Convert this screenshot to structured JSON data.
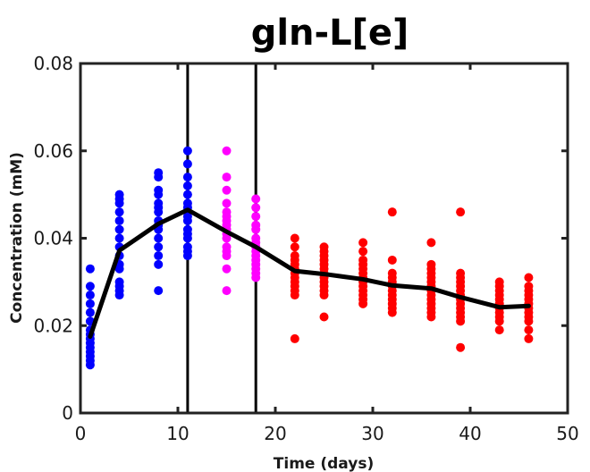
{
  "chart_data": {
    "type": "scatter",
    "title": "gln-L[e]",
    "xlabel": "Time (days)",
    "ylabel": "Concentration (mM)",
    "xlim": [
      0,
      50
    ],
    "ylim": [
      0,
      0.08
    ],
    "xticks": [
      "0",
      "10",
      "20",
      "30",
      "40",
      "50"
    ],
    "yticks": [
      "0",
      "0.02",
      "0.04",
      "0.06",
      "0.08"
    ],
    "grid": false,
    "vertical_lines": [
      11,
      18
    ],
    "colors": {
      "phase1": "#0000ff",
      "phase2": "#ff00ff",
      "phase3": "#ff0000",
      "mean_line": "#000000",
      "vlines": "#000000"
    },
    "series": [
      {
        "key": "phase1",
        "points": [
          [
            1,
            0.011
          ],
          [
            1,
            0.012
          ],
          [
            1,
            0.013
          ],
          [
            1,
            0.014
          ],
          [
            1,
            0.015
          ],
          [
            1,
            0.016
          ],
          [
            1,
            0.017
          ],
          [
            1,
            0.018
          ],
          [
            1,
            0.019
          ],
          [
            1,
            0.021
          ],
          [
            1,
            0.023
          ],
          [
            1,
            0.025
          ],
          [
            1,
            0.027
          ],
          [
            1,
            0.029
          ],
          [
            1,
            0.033
          ],
          [
            4,
            0.027
          ],
          [
            4,
            0.028
          ],
          [
            4,
            0.029
          ],
          [
            4,
            0.03
          ],
          [
            4,
            0.033
          ],
          [
            4,
            0.034
          ],
          [
            4,
            0.036
          ],
          [
            4,
            0.038
          ],
          [
            4,
            0.04
          ],
          [
            4,
            0.042
          ],
          [
            4,
            0.044
          ],
          [
            4,
            0.046
          ],
          [
            4,
            0.048
          ],
          [
            4,
            0.049
          ],
          [
            4,
            0.05
          ],
          [
            8,
            0.028
          ],
          [
            8,
            0.034
          ],
          [
            8,
            0.036
          ],
          [
            8,
            0.038
          ],
          [
            8,
            0.04
          ],
          [
            8,
            0.042
          ],
          [
            8,
            0.043
          ],
          [
            8,
            0.044
          ],
          [
            8,
            0.046
          ],
          [
            8,
            0.047
          ],
          [
            8,
            0.048
          ],
          [
            8,
            0.05
          ],
          [
            8,
            0.051
          ],
          [
            8,
            0.054
          ],
          [
            8,
            0.055
          ],
          [
            11,
            0.036
          ],
          [
            11,
            0.037
          ],
          [
            11,
            0.038
          ],
          [
            11,
            0.04
          ],
          [
            11,
            0.041
          ],
          [
            11,
            0.042
          ],
          [
            11,
            0.044
          ],
          [
            11,
            0.045
          ],
          [
            11,
            0.047
          ],
          [
            11,
            0.048
          ],
          [
            11,
            0.05
          ],
          [
            11,
            0.052
          ],
          [
            11,
            0.054
          ],
          [
            11,
            0.057
          ],
          [
            11,
            0.06
          ]
        ]
      },
      {
        "key": "phase2",
        "points": [
          [
            15,
            0.028
          ],
          [
            15,
            0.033
          ],
          [
            15,
            0.036
          ],
          [
            15,
            0.037
          ],
          [
            15,
            0.038
          ],
          [
            15,
            0.04
          ],
          [
            15,
            0.041
          ],
          [
            15,
            0.042
          ],
          [
            15,
            0.043
          ],
          [
            15,
            0.044
          ],
          [
            15,
            0.045
          ],
          [
            15,
            0.046
          ],
          [
            15,
            0.048
          ],
          [
            15,
            0.051
          ],
          [
            15,
            0.054
          ],
          [
            15,
            0.06
          ],
          [
            18,
            0.031
          ],
          [
            18,
            0.032
          ],
          [
            18,
            0.033
          ],
          [
            18,
            0.034
          ],
          [
            18,
            0.035
          ],
          [
            18,
            0.036
          ],
          [
            18,
            0.037
          ],
          [
            18,
            0.038
          ],
          [
            18,
            0.039
          ],
          [
            18,
            0.04
          ],
          [
            18,
            0.042
          ],
          [
            18,
            0.043
          ],
          [
            18,
            0.045
          ],
          [
            18,
            0.047
          ],
          [
            18,
            0.049
          ]
        ]
      },
      {
        "key": "phase3",
        "points": [
          [
            22,
            0.017
          ],
          [
            22,
            0.027
          ],
          [
            22,
            0.028
          ],
          [
            22,
            0.029
          ],
          [
            22,
            0.03
          ],
          [
            22,
            0.031
          ],
          [
            22,
            0.032
          ],
          [
            22,
            0.033
          ],
          [
            22,
            0.034
          ],
          [
            22,
            0.035
          ],
          [
            22,
            0.036
          ],
          [
            22,
            0.038
          ],
          [
            22,
            0.04
          ],
          [
            25,
            0.022
          ],
          [
            25,
            0.027
          ],
          [
            25,
            0.028
          ],
          [
            25,
            0.029
          ],
          [
            25,
            0.03
          ],
          [
            25,
            0.031
          ],
          [
            25,
            0.032
          ],
          [
            25,
            0.033
          ],
          [
            25,
            0.034
          ],
          [
            25,
            0.035
          ],
          [
            25,
            0.036
          ],
          [
            25,
            0.037
          ],
          [
            25,
            0.038
          ],
          [
            29,
            0.025
          ],
          [
            29,
            0.026
          ],
          [
            29,
            0.027
          ],
          [
            29,
            0.028
          ],
          [
            29,
            0.029
          ],
          [
            29,
            0.03
          ],
          [
            29,
            0.031
          ],
          [
            29,
            0.032
          ],
          [
            29,
            0.033
          ],
          [
            29,
            0.034
          ],
          [
            29,
            0.035
          ],
          [
            29,
            0.037
          ],
          [
            29,
            0.039
          ],
          [
            32,
            0.023
          ],
          [
            32,
            0.024
          ],
          [
            32,
            0.025
          ],
          [
            32,
            0.026
          ],
          [
            32,
            0.027
          ],
          [
            32,
            0.028
          ],
          [
            32,
            0.029
          ],
          [
            32,
            0.03
          ],
          [
            32,
            0.031
          ],
          [
            32,
            0.032
          ],
          [
            32,
            0.035
          ],
          [
            32,
            0.046
          ],
          [
            36,
            0.022
          ],
          [
            36,
            0.023
          ],
          [
            36,
            0.024
          ],
          [
            36,
            0.025
          ],
          [
            36,
            0.026
          ],
          [
            36,
            0.027
          ],
          [
            36,
            0.028
          ],
          [
            36,
            0.029
          ],
          [
            36,
            0.03
          ],
          [
            36,
            0.031
          ],
          [
            36,
            0.032
          ],
          [
            36,
            0.033
          ],
          [
            36,
            0.034
          ],
          [
            36,
            0.039
          ],
          [
            39,
            0.015
          ],
          [
            39,
            0.021
          ],
          [
            39,
            0.022
          ],
          [
            39,
            0.023
          ],
          [
            39,
            0.024
          ],
          [
            39,
            0.025
          ],
          [
            39,
            0.026
          ],
          [
            39,
            0.027
          ],
          [
            39,
            0.028
          ],
          [
            39,
            0.029
          ],
          [
            39,
            0.03
          ],
          [
            39,
            0.031
          ],
          [
            39,
            0.032
          ],
          [
            39,
            0.046
          ],
          [
            43,
            0.019
          ],
          [
            43,
            0.021
          ],
          [
            43,
            0.022
          ],
          [
            43,
            0.023
          ],
          [
            43,
            0.024
          ],
          [
            43,
            0.025
          ],
          [
            43,
            0.026
          ],
          [
            43,
            0.027
          ],
          [
            43,
            0.028
          ],
          [
            43,
            0.029
          ],
          [
            43,
            0.03
          ],
          [
            46,
            0.017
          ],
          [
            46,
            0.019
          ],
          [
            46,
            0.021
          ],
          [
            46,
            0.022
          ],
          [
            46,
            0.023
          ],
          [
            46,
            0.024
          ],
          [
            46,
            0.025
          ],
          [
            46,
            0.026
          ],
          [
            46,
            0.027
          ],
          [
            46,
            0.028
          ],
          [
            46,
            0.029
          ],
          [
            46,
            0.031
          ]
        ]
      }
    ],
    "mean_line": {
      "x": [
        1,
        4,
        8,
        11,
        15,
        18,
        22,
        25,
        29,
        32,
        36,
        39,
        43,
        46
      ],
      "y": [
        0.0175,
        0.0372,
        0.0433,
        0.0465,
        0.0415,
        0.038,
        0.0325,
        0.0318,
        0.0306,
        0.0292,
        0.0285,
        0.0265,
        0.0242,
        0.0245
      ]
    }
  }
}
